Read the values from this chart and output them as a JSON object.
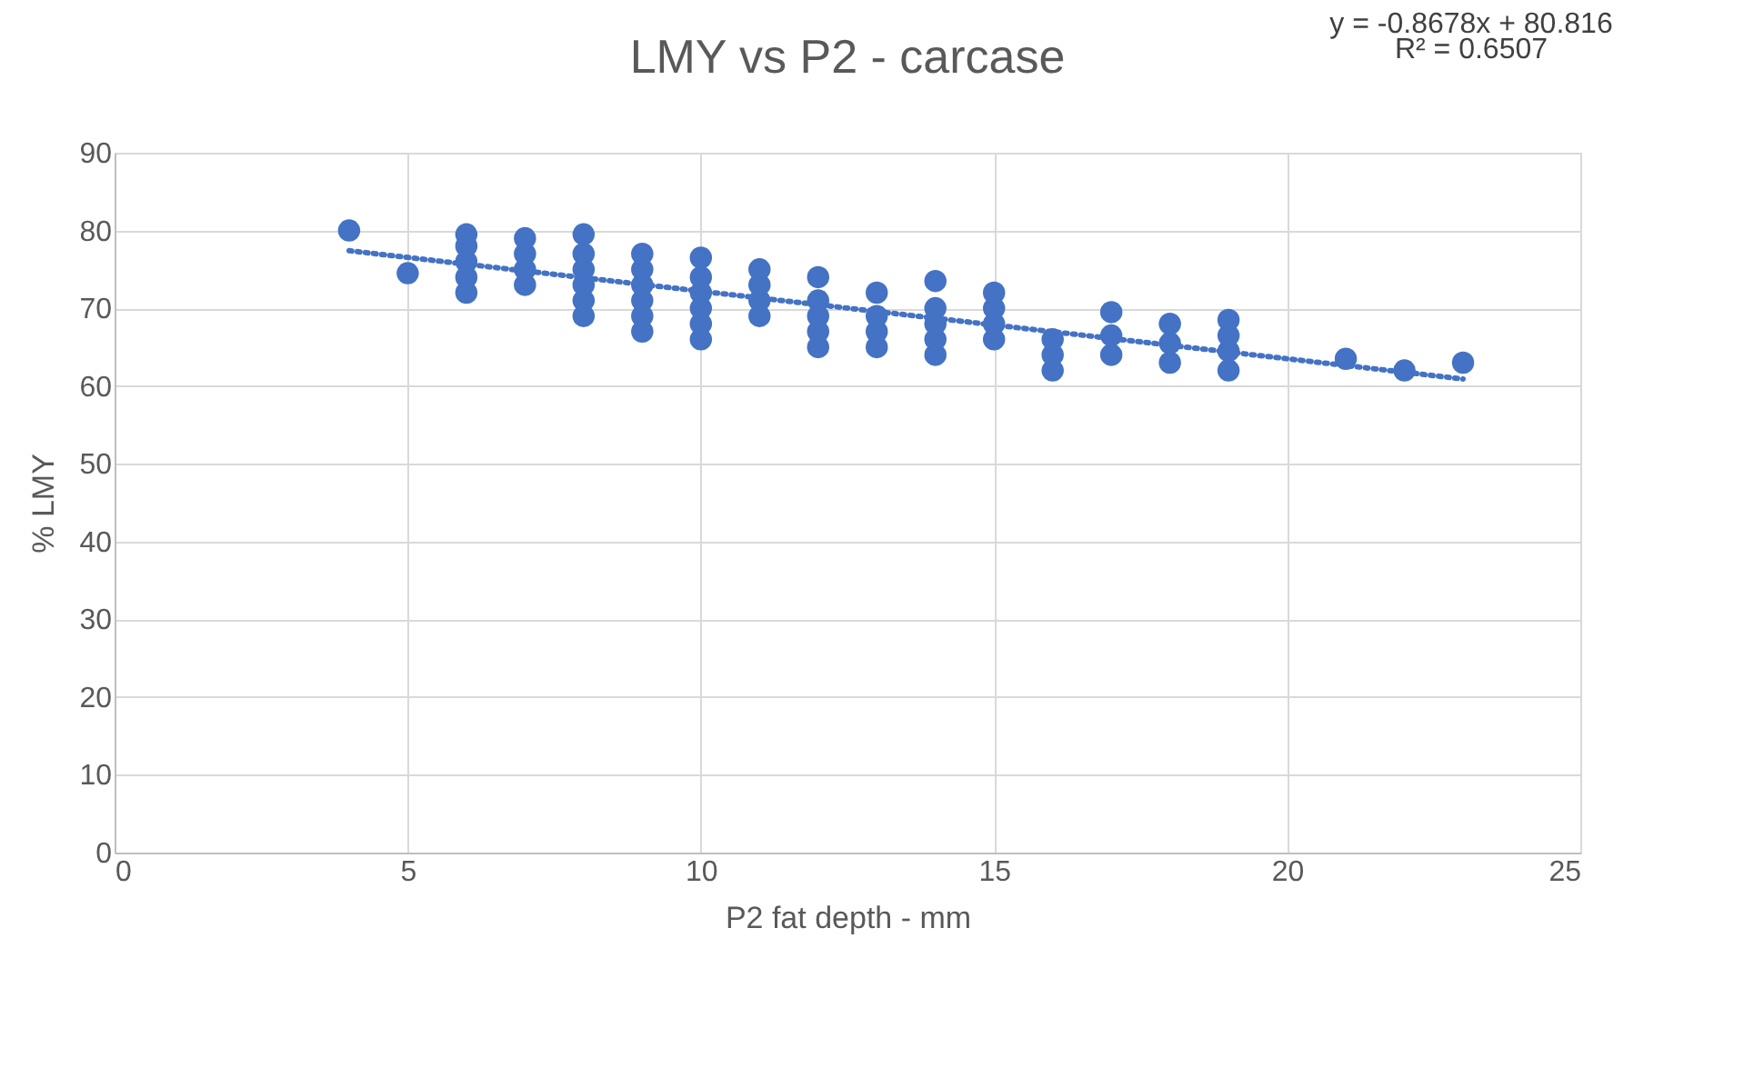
{
  "chart_data": {
    "type": "scatter",
    "title": "LMY vs P2 - carcase",
    "xlabel": "P2 fat depth - mm",
    "ylabel": "% LMY",
    "annotations": [
      "y = -0.8678x + 80.816",
      "R² = 0.6507"
    ],
    "xlim": [
      0,
      25
    ],
    "xticks": [
      0,
      5,
      10,
      15,
      20,
      25
    ],
    "ylim": [
      0,
      90
    ],
    "yticks": [
      0,
      10,
      20,
      30,
      40,
      50,
      60,
      70,
      80,
      90
    ],
    "grid": true,
    "marker": "circle",
    "series": [
      {
        "color": "#4472c4",
        "x": [
          4,
          5,
          6,
          6,
          6,
          6,
          6,
          7,
          7,
          7,
          7,
          8,
          8,
          8,
          8,
          8,
          8,
          9,
          9,
          9,
          9,
          9,
          9,
          10,
          10,
          10,
          10,
          10,
          10,
          11,
          11,
          11,
          11,
          12,
          12,
          12,
          12,
          12,
          13,
          13,
          13,
          13,
          14,
          14,
          14,
          14,
          14,
          15,
          15,
          15,
          15,
          16,
          16,
          16,
          17,
          17,
          17,
          18,
          18,
          18,
          19,
          19,
          19,
          19,
          21,
          22,
          23
        ],
        "values": [
          80,
          74.5,
          72,
          74,
          76,
          78,
          79.5,
          73,
          75,
          77,
          79,
          69,
          71,
          73,
          75,
          77,
          79.5,
          67,
          69,
          71,
          73,
          75,
          77,
          66,
          68,
          70,
          72,
          74,
          76.5,
          69,
          71,
          73,
          75,
          65,
          67,
          69,
          71,
          74,
          65,
          67,
          69,
          72,
          64,
          66,
          68,
          70,
          73.5,
          66,
          68,
          70,
          72,
          62,
          64,
          66,
          64,
          66.5,
          69.5,
          63,
          65.5,
          68,
          62,
          64.5,
          66.5,
          68.5,
          63.5,
          62,
          63
        ]
      },
      {
        "type": "line",
        "marker": "none",
        "line_style": "dotted",
        "color": "#4472c4",
        "x": [
          4,
          23
        ],
        "values": [
          77.4,
          60.9
        ]
      }
    ]
  }
}
